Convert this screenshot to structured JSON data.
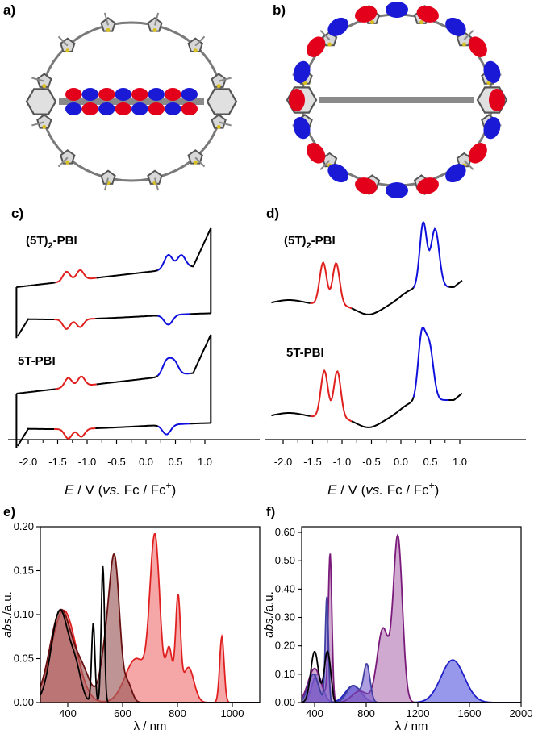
{
  "panels": {
    "a": "a)",
    "b": "b)",
    "c": "c)",
    "d": "d)",
    "e": "e)",
    "f": "f)"
  },
  "compounds": {
    "dimer_base": "(5T)",
    "dimer_sub": "2",
    "dimer_tail": "-PBI",
    "mono": "5T-PBI"
  },
  "electrochem_axis": {
    "label_e": "E",
    "label_rest": " / V (",
    "label_vs": "vs.",
    "label_fc": " Fc / Fc",
    "label_plus": "+",
    "label_close": ")"
  },
  "spectra_axis": {
    "xlabel": "λ / nm",
    "ylabel_abs": "abs.",
    "ylabel_unit": "/a.u."
  },
  "colors": {
    "black": "#000000",
    "red": "#e0201e",
    "blue": "#1010dd",
    "orbital_red": "#e2001a",
    "orbital_blue": "#1a1ad6",
    "dark_red": "#7a1e1e",
    "brown": "#8a5050",
    "light_red": "#f08080",
    "purple": "#7a1a7a",
    "violet": "#6a5acd",
    "blue_fill": "#7d7dee"
  },
  "chart_data": [
    {
      "panel": "c",
      "type": "line",
      "x_ticks": [
        "-2.0",
        "-1.5",
        "-1.0",
        "-0.5",
        "0.0",
        "0.5",
        "1.0"
      ],
      "xlim": [
        -2.25,
        1.15
      ],
      "series": [
        {
          "name": "(5T)2-PBI",
          "kind": "cyclic voltammogram",
          "reduction_peaks": [
            -1.35,
            -1.12
          ],
          "oxidation_peaks": [
            0.38,
            0.6
          ]
        },
        {
          "name": "5T-PBI",
          "kind": "cyclic voltammogram",
          "reduction_peaks": [
            -1.32,
            -1.1
          ],
          "oxidation_peaks": [
            0.35,
            0.48
          ]
        }
      ]
    },
    {
      "panel": "d",
      "type": "line",
      "x_ticks": [
        "-2.0",
        "-1.5",
        "-1.0",
        "-0.5",
        "0.0",
        "0.5",
        "1.0"
      ],
      "xlim": [
        -2.25,
        1.15
      ],
      "series": [
        {
          "name": "(5T)2-PBI",
          "kind": "differential pulse voltammogram",
          "peaks": [
            -1.32,
            -1.1,
            0.38,
            0.58
          ]
        },
        {
          "name": "5T-PBI",
          "kind": "differential pulse voltammogram",
          "peaks": [
            -1.3,
            -1.08,
            0.35,
            0.48
          ]
        }
      ]
    },
    {
      "panel": "e",
      "type": "area",
      "xlim": [
        300,
        1100
      ],
      "ylim": [
        0,
        0.2
      ],
      "x_ticks": [
        "400",
        "600",
        "800",
        "1000"
      ],
      "y_ticks": [
        "0.00",
        "0.05",
        "0.10",
        "0.15",
        "0.20"
      ],
      "series": [
        {
          "color": "black",
          "peaks": [
            [
              380,
              0.11
            ],
            [
              490,
              0.095
            ],
            [
              528,
              0.16
            ]
          ]
        },
        {
          "color": "dark_red",
          "peaks": [
            [
              385,
              0.11
            ],
            [
              575,
              0.155
            ]
          ]
        },
        {
          "color": "brown",
          "peaks": [
            [
              380,
              0.11
            ],
            [
              570,
              0.155
            ]
          ]
        },
        {
          "color": "light_red",
          "peaks": [
            [
              390,
              0.105
            ],
            [
              718,
              0.19
            ],
            [
              800,
              0.12
            ],
            [
              962,
              0.075
            ]
          ]
        }
      ]
    },
    {
      "panel": "f",
      "type": "area",
      "xlim": [
        300,
        2000
      ],
      "ylim": [
        0,
        0.62
      ],
      "x_ticks": [
        "400",
        "800",
        "1200",
        "1600",
        "2000"
      ],
      "y_ticks": [
        "0.00",
        "0.10",
        "0.20",
        "0.30",
        "0.40",
        "0.50",
        "0.60"
      ],
      "series": [
        {
          "color": "black",
          "peaks": [
            [
              400,
              0.19
            ],
            [
              500,
              0.19
            ]
          ]
        },
        {
          "color": "purple",
          "peaks": [
            [
              520,
              0.53
            ],
            [
              930,
              0.27
            ],
            [
              1045,
              0.6
            ]
          ]
        },
        {
          "color": "violet",
          "peaks": [
            [
              500,
              0.38
            ],
            [
              800,
              0.14
            ]
          ]
        },
        {
          "color": "blue_fill",
          "peaks": [
            [
              1470,
              0.15
            ]
          ]
        }
      ]
    }
  ]
}
